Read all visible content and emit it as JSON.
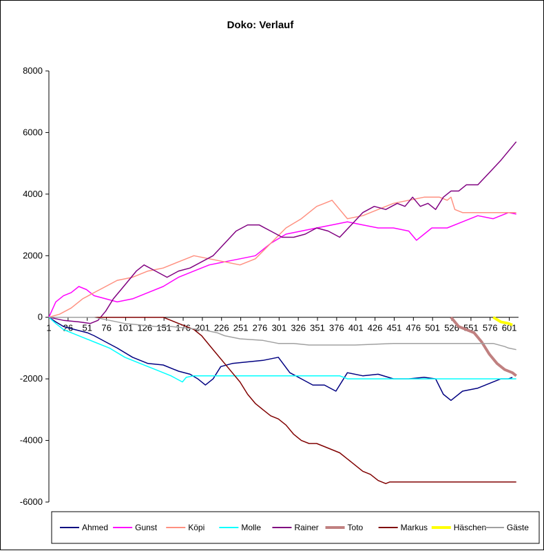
{
  "chart_data": {
    "type": "line",
    "title": "Doko: Verlauf",
    "xlabel": "",
    "ylabel": "",
    "ylim": [
      -6000,
      8000
    ],
    "yticks": [
      8000,
      6000,
      4000,
      2000,
      0,
      -2000,
      -4000,
      -6000
    ],
    "xlim": [
      1,
      613
    ],
    "xticks": [
      "1",
      "26",
      "51",
      "76",
      "101",
      "126",
      "151",
      "176",
      "201",
      "226",
      "251",
      "276",
      "301",
      "326",
      "351",
      "376",
      "401",
      "426",
      "451",
      "476",
      "501",
      "526",
      "551",
      "576",
      "601"
    ],
    "legend_position": "bottom",
    "grid": false,
    "series": [
      {
        "name": "Ahmed",
        "color": "#000080",
        "width": 1.5,
        "x": [
          1,
          10,
          20,
          35,
          51,
          60,
          75,
          90,
          110,
          130,
          150,
          170,
          185,
          195,
          205,
          215,
          225,
          240,
          260,
          280,
          300,
          315,
          330,
          345,
          360,
          375,
          390,
          410,
          430,
          450,
          470,
          490,
          505,
          515,
          525,
          540,
          560,
          580,
          590,
          600,
          605
        ],
        "y": [
          0,
          -150,
          -300,
          -400,
          -500,
          -600,
          -800,
          -1000,
          -1300,
          -1500,
          -1550,
          -1750,
          -1850,
          -2000,
          -2200,
          -2000,
          -1600,
          -1500,
          -1450,
          -1400,
          -1300,
          -1800,
          -2000,
          -2200,
          -2200,
          -2400,
          -1800,
          -1900,
          -1850,
          -2000,
          -2000,
          -1950,
          -2000,
          -2500,
          -2700,
          -2400,
          -2300,
          -2100,
          -2000,
          -2000,
          -1950
        ]
      },
      {
        "name": "Gunst",
        "color": "#ff00ff",
        "width": 1.5,
        "x": [
          1,
          10,
          20,
          30,
          40,
          50,
          60,
          75,
          90,
          110,
          130,
          150,
          170,
          190,
          210,
          230,
          250,
          270,
          290,
          310,
          330,
          350,
          370,
          390,
          410,
          430,
          450,
          470,
          480,
          490,
          500,
          520,
          540,
          560,
          580,
          600,
          610
        ],
        "y": [
          0,
          500,
          700,
          800,
          1000,
          900,
          700,
          600,
          500,
          600,
          800,
          1000,
          1300,
          1500,
          1700,
          1800,
          1900,
          2000,
          2400,
          2700,
          2800,
          2900,
          3000,
          3100,
          3000,
          2900,
          2900,
          2800,
          2500,
          2700,
          2900,
          2900,
          3100,
          3300,
          3200,
          3400,
          3350
        ]
      },
      {
        "name": "Köpi",
        "color": "#ff9080",
        "width": 1.5,
        "x": [
          1,
          15,
          30,
          45,
          60,
          75,
          90,
          110,
          130,
          150,
          170,
          190,
          210,
          230,
          250,
          270,
          290,
          310,
          330,
          350,
          360,
          370,
          380,
          390,
          410,
          430,
          450,
          470,
          490,
          510,
          520,
          525,
          530,
          540,
          560,
          580,
          600,
          610
        ],
        "y": [
          0,
          100,
          300,
          600,
          800,
          1000,
          1200,
          1300,
          1500,
          1600,
          1800,
          2000,
          1900,
          1800,
          1700,
          1900,
          2400,
          2900,
          3200,
          3600,
          3700,
          3800,
          3500,
          3200,
          3300,
          3500,
          3700,
          3800,
          3900,
          3900,
          3800,
          3900,
          3500,
          3400,
          3400,
          3400,
          3400,
          3400
        ]
      },
      {
        "name": "Molle",
        "color": "#00ffff",
        "width": 1.5,
        "x": [
          1,
          10,
          20,
          30,
          45,
          60,
          80,
          100,
          120,
          140,
          160,
          175,
          180,
          190,
          200,
          250,
          300,
          350,
          380,
          390,
          420,
          450,
          500,
          550,
          600,
          610
        ],
        "y": [
          0,
          -200,
          -400,
          -500,
          -650,
          -800,
          -1000,
          -1300,
          -1500,
          -1700,
          -1900,
          -2100,
          -1950,
          -1900,
          -1900,
          -1900,
          -1900,
          -1900,
          -1900,
          -2000,
          -2000,
          -2000,
          -2000,
          -2000,
          -2000,
          -2000
        ]
      },
      {
        "name": "Rainer",
        "color": "#800080",
        "width": 1.5,
        "x": [
          1,
          20,
          40,
          55,
          65,
          75,
          85,
          95,
          105,
          115,
          125,
          140,
          155,
          170,
          185,
          200,
          215,
          230,
          245,
          260,
          275,
          290,
          305,
          320,
          335,
          350,
          365,
          380,
          395,
          410,
          425,
          440,
          455,
          465,
          475,
          485,
          495,
          505,
          515,
          525,
          535,
          545,
          560,
          575,
          590,
          600,
          610
        ],
        "y": [
          0,
          -100,
          -150,
          -200,
          -100,
          200,
          600,
          900,
          1200,
          1500,
          1700,
          1500,
          1300,
          1500,
          1600,
          1800,
          2000,
          2400,
          2800,
          3000,
          3000,
          2800,
          2600,
          2600,
          2700,
          2900,
          2800,
          2600,
          3000,
          3400,
          3600,
          3500,
          3700,
          3600,
          3900,
          3600,
          3700,
          3500,
          3900,
          4100,
          4100,
          4300,
          4300,
          4700,
          5100,
          5400,
          5700
        ]
      },
      {
        "name": "Toto",
        "color": "#c08080",
        "width": 4,
        "x": [
          525,
          535,
          545,
          555,
          565,
          575,
          585,
          595,
          605,
          610
        ],
        "y": [
          0,
          -300,
          -400,
          -500,
          -800,
          -1200,
          -1500,
          -1700,
          -1800,
          -1900
        ]
      },
      {
        "name": "Markus",
        "color": "#800000",
        "width": 1.5,
        "x": [
          1,
          50,
          100,
          150,
          160,
          170,
          180,
          190,
          200,
          210,
          220,
          230,
          240,
          250,
          260,
          270,
          280,
          290,
          300,
          310,
          320,
          330,
          340,
          350,
          360,
          370,
          380,
          390,
          400,
          410,
          420,
          430,
          440,
          445,
          450,
          500,
          550,
          600,
          610
        ],
        "y": [
          0,
          0,
          0,
          0,
          -100,
          -200,
          -300,
          -400,
          -600,
          -900,
          -1200,
          -1500,
          -1800,
          -2100,
          -2500,
          -2800,
          -3000,
          -3200,
          -3300,
          -3500,
          -3800,
          -4000,
          -4100,
          -4100,
          -4200,
          -4300,
          -4400,
          -4600,
          -4800,
          -5000,
          -5100,
          -5300,
          -5400,
          -5350,
          -5350,
          -5350,
          -5350,
          -5350,
          -5350
        ]
      },
      {
        "name": "Häschen",
        "color": "#ffff00",
        "width": 4,
        "x": [
          580,
          590,
          600,
          605
        ],
        "y": [
          0,
          -150,
          -200,
          -250
        ]
      },
      {
        "name": "Gäste",
        "color": "#a0a0a0",
        "width": 1.5,
        "x": [
          1,
          60,
          80,
          100,
          120,
          140,
          160,
          180,
          200,
          220,
          230,
          250,
          280,
          300,
          320,
          340,
          360,
          380,
          400,
          450,
          500,
          530,
          560,
          580,
          595,
          600,
          610
        ],
        "y": [
          0,
          0,
          -100,
          -200,
          -250,
          -300,
          -300,
          -350,
          -400,
          -500,
          -600,
          -700,
          -750,
          -850,
          -850,
          -900,
          -900,
          -900,
          -900,
          -850,
          -850,
          -850,
          -850,
          -850,
          -950,
          -1000,
          -1050
        ]
      }
    ]
  }
}
